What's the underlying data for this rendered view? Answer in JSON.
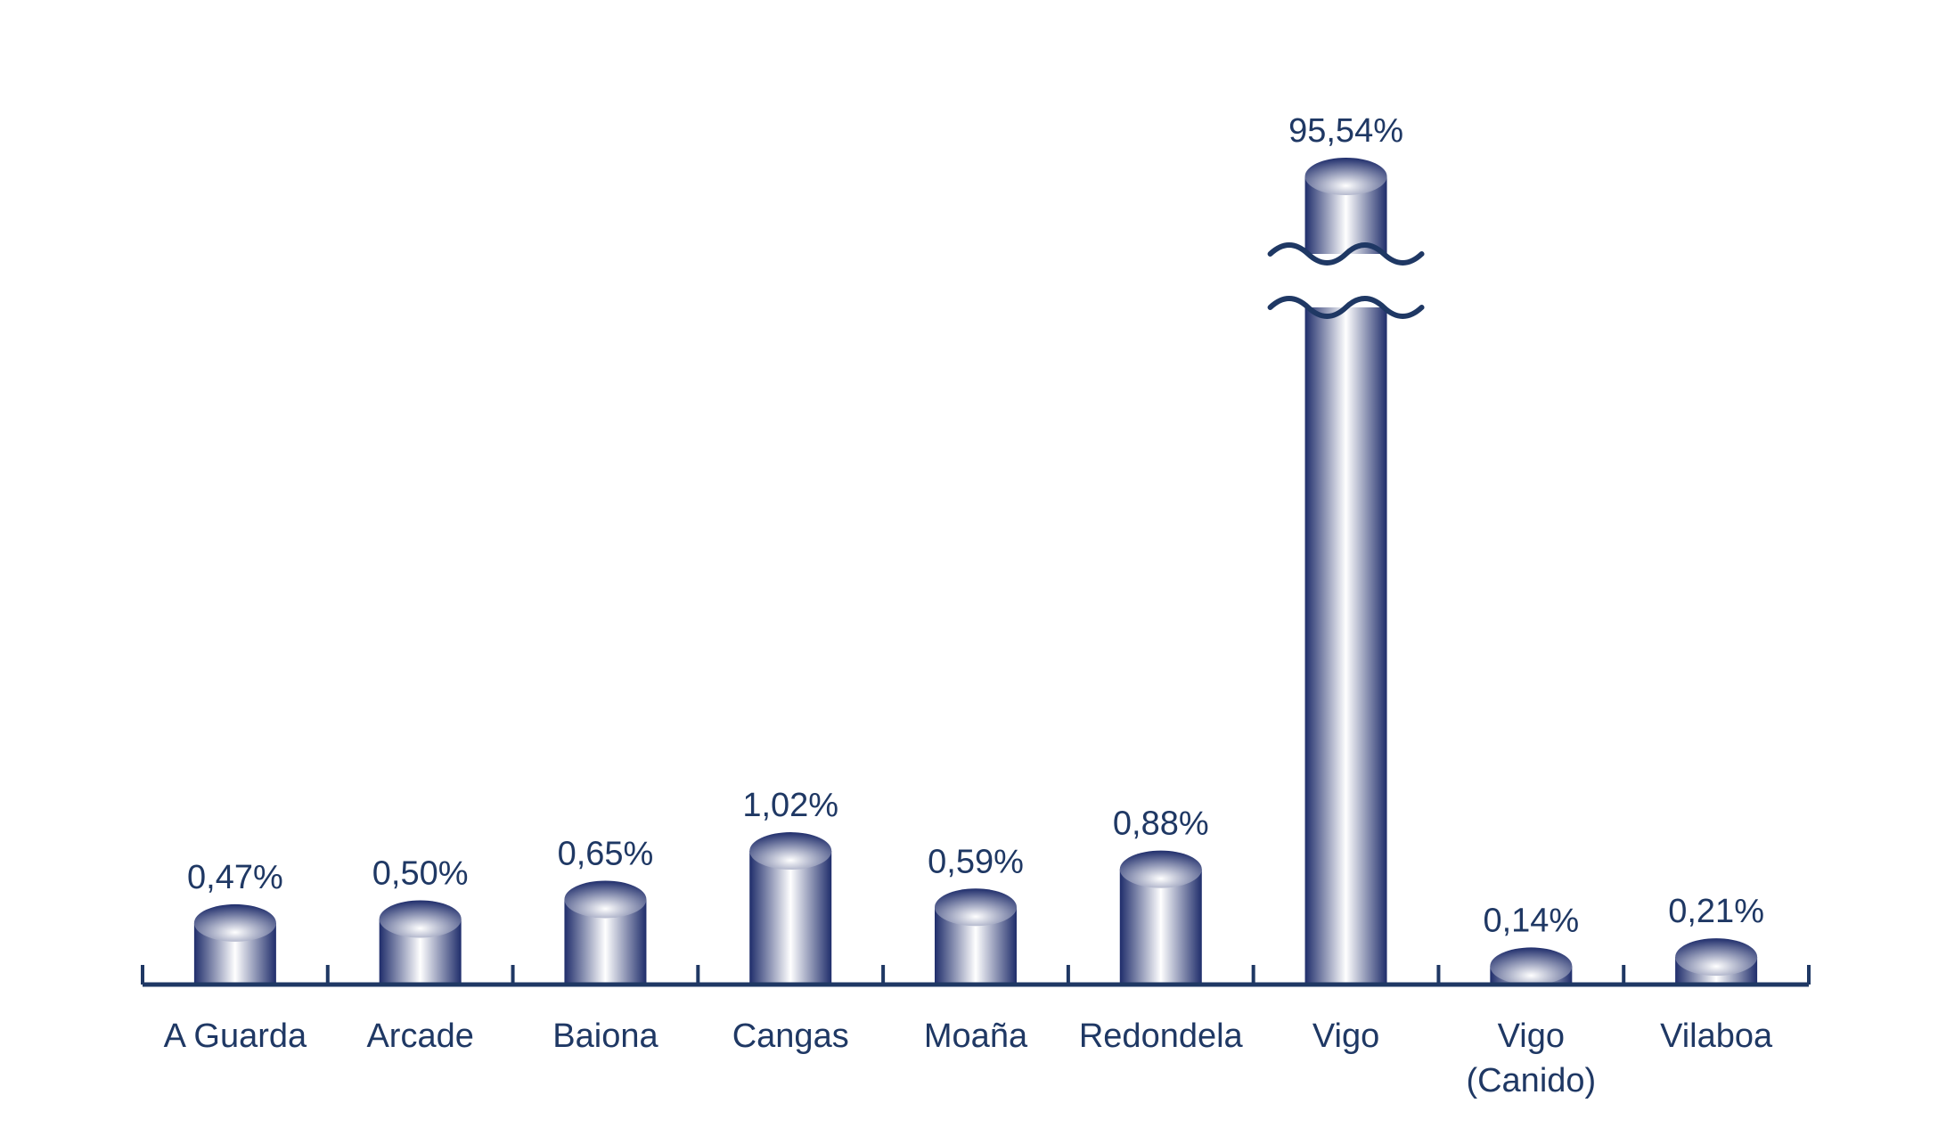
{
  "colors": {
    "bar_dark": "#1f2d6b",
    "bar_light": "#ffffff",
    "axis": "#1f3864",
    "text": "#1f3864"
  },
  "chart_data": {
    "type": "bar",
    "style": "cylinder",
    "categories": [
      [
        "A Guarda"
      ],
      [
        "Arcade"
      ],
      [
        "Baiona"
      ],
      [
        "Cangas"
      ],
      [
        "Moaña"
      ],
      [
        "Redondela"
      ],
      [
        "Vigo"
      ],
      [
        "Vigo",
        "(Canido)"
      ],
      [
        "Vilaboa"
      ]
    ],
    "values": [
      0.47,
      0.5,
      0.65,
      1.02,
      0.59,
      0.88,
      95.54,
      0.14,
      0.21
    ],
    "value_labels": [
      "0,47%",
      "0,50%",
      "0,65%",
      "1,02%",
      "0,59%",
      "0,88%",
      "95,54%",
      "0,14%",
      "0,21%"
    ],
    "unit": "%",
    "title": "",
    "xlabel": "",
    "ylabel": "",
    "broken_bar_index": 6,
    "grid": false,
    "legend": "none"
  }
}
